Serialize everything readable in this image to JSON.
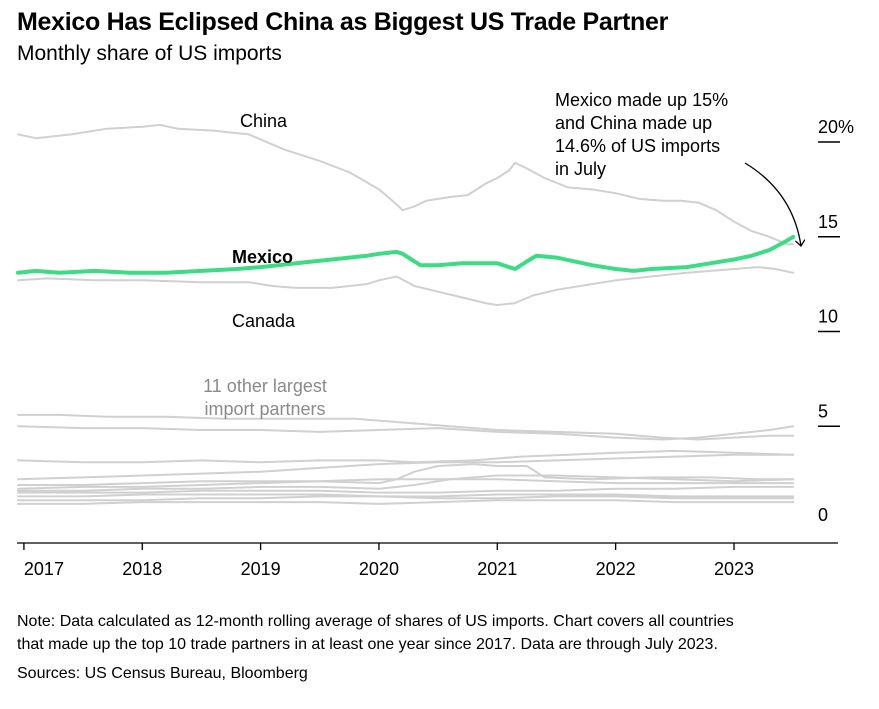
{
  "header": {
    "title": "Mexico Has Eclipsed China as Biggest US Trade Partner",
    "subtitle": "Monthly share of US imports"
  },
  "footer": {
    "note_line1": "Note: Data calculated as 12-month rolling average of shares of US imports. Chart covers all countries",
    "note_line2": "that made up the top 10 trade partners in at least one year since 2017. Data are through July 2023.",
    "sources": "Sources: US Census Bureau, Bloomberg"
  },
  "colors": {
    "mexico": "#3ddc84",
    "gray_line": "#d0d0d0",
    "axis": "#000000",
    "label_gray": "#8a8a8a"
  },
  "chart_data": {
    "type": "line",
    "xlim": [
      2016.95,
      2023.6
    ],
    "ylim": [
      0,
      20
    ],
    "y_ticks": [
      {
        "value": 0,
        "label": "0"
      },
      {
        "value": 5,
        "label": "5"
      },
      {
        "value": 10,
        "label": "10"
      },
      {
        "value": 15,
        "label": "15"
      },
      {
        "value": 20,
        "label": "20%"
      }
    ],
    "x_ticks": [
      {
        "value": 2017,
        "label": "2017"
      },
      {
        "value": 2018,
        "label": "2018"
      },
      {
        "value": 2019,
        "label": "2019"
      },
      {
        "value": 2020,
        "label": "2020"
      },
      {
        "value": 2021,
        "label": "2021"
      },
      {
        "value": 2022,
        "label": "2022"
      },
      {
        "value": 2023,
        "label": "2023"
      }
    ],
    "annotations": {
      "china": "China",
      "mexico": "Mexico",
      "canada": "Canada",
      "others_line1": "11 other largest",
      "others_line2": "import partners",
      "callout": [
        "Mexico made up 15%",
        "and China made up",
        "14.6% of US imports",
        "in July"
      ]
    },
    "series": [
      {
        "name": "China",
        "highlight": false,
        "points": [
          [
            2016.95,
            20.4
          ],
          [
            2017.1,
            20.2
          ],
          [
            2017.4,
            20.4
          ],
          [
            2017.7,
            20.7
          ],
          [
            2018.0,
            20.8
          ],
          [
            2018.15,
            20.9
          ],
          [
            2018.3,
            20.7
          ],
          [
            2018.6,
            20.6
          ],
          [
            2018.9,
            20.4
          ],
          [
            2019.2,
            19.6
          ],
          [
            2019.5,
            19.0
          ],
          [
            2019.75,
            18.4
          ],
          [
            2020.0,
            17.5
          ],
          [
            2020.15,
            16.7
          ],
          [
            2020.2,
            16.4
          ],
          [
            2020.3,
            16.6
          ],
          [
            2020.4,
            16.9
          ],
          [
            2020.6,
            17.1
          ],
          [
            2020.75,
            17.2
          ],
          [
            2020.9,
            17.8
          ],
          [
            2021.0,
            18.1
          ],
          [
            2021.1,
            18.5
          ],
          [
            2021.15,
            18.9
          ],
          [
            2021.25,
            18.6
          ],
          [
            2021.4,
            18.1
          ],
          [
            2021.6,
            17.6
          ],
          [
            2021.8,
            17.5
          ],
          [
            2022.0,
            17.3
          ],
          [
            2022.2,
            17.0
          ],
          [
            2022.4,
            16.9
          ],
          [
            2022.55,
            16.9
          ],
          [
            2022.7,
            16.8
          ],
          [
            2022.85,
            16.4
          ],
          [
            2023.0,
            15.8
          ],
          [
            2023.15,
            15.3
          ],
          [
            2023.3,
            15.0
          ],
          [
            2023.45,
            14.6
          ],
          [
            2023.5,
            14.6
          ]
        ]
      },
      {
        "name": "Mexico",
        "highlight": true,
        "points": [
          [
            2016.95,
            13.1
          ],
          [
            2017.1,
            13.2
          ],
          [
            2017.3,
            13.1
          ],
          [
            2017.6,
            13.2
          ],
          [
            2017.9,
            13.1
          ],
          [
            2018.2,
            13.1
          ],
          [
            2018.5,
            13.2
          ],
          [
            2018.8,
            13.3
          ],
          [
            2019.0,
            13.4
          ],
          [
            2019.3,
            13.6
          ],
          [
            2019.6,
            13.8
          ],
          [
            2019.9,
            14.0
          ],
          [
            2020.0,
            14.1
          ],
          [
            2020.15,
            14.2
          ],
          [
            2020.2,
            14.1
          ],
          [
            2020.35,
            13.5
          ],
          [
            2020.5,
            13.5
          ],
          [
            2020.7,
            13.6
          ],
          [
            2020.9,
            13.6
          ],
          [
            2021.0,
            13.6
          ],
          [
            2021.15,
            13.3
          ],
          [
            2021.25,
            13.7
          ],
          [
            2021.33,
            14.0
          ],
          [
            2021.5,
            13.9
          ],
          [
            2021.8,
            13.5
          ],
          [
            2022.0,
            13.3
          ],
          [
            2022.15,
            13.2
          ],
          [
            2022.3,
            13.3
          ],
          [
            2022.6,
            13.4
          ],
          [
            2022.8,
            13.6
          ],
          [
            2023.0,
            13.8
          ],
          [
            2023.15,
            14.0
          ],
          [
            2023.3,
            14.3
          ],
          [
            2023.45,
            14.8
          ],
          [
            2023.5,
            15.0
          ]
        ]
      },
      {
        "name": "Canada",
        "highlight": false,
        "points": [
          [
            2016.95,
            12.7
          ],
          [
            2017.2,
            12.8
          ],
          [
            2017.6,
            12.7
          ],
          [
            2018.0,
            12.7
          ],
          [
            2018.5,
            12.6
          ],
          [
            2018.9,
            12.6
          ],
          [
            2019.1,
            12.4
          ],
          [
            2019.3,
            12.3
          ],
          [
            2019.6,
            12.3
          ],
          [
            2019.9,
            12.5
          ],
          [
            2020.0,
            12.7
          ],
          [
            2020.15,
            12.9
          ],
          [
            2020.3,
            12.4
          ],
          [
            2020.5,
            12.1
          ],
          [
            2020.7,
            11.8
          ],
          [
            2020.9,
            11.5
          ],
          [
            2021.0,
            11.4
          ],
          [
            2021.15,
            11.5
          ],
          [
            2021.3,
            11.9
          ],
          [
            2021.5,
            12.2
          ],
          [
            2021.8,
            12.5
          ],
          [
            2022.0,
            12.7
          ],
          [
            2022.3,
            12.9
          ],
          [
            2022.6,
            13.1
          ],
          [
            2022.8,
            13.2
          ],
          [
            2023.0,
            13.3
          ],
          [
            2023.2,
            13.4
          ],
          [
            2023.35,
            13.3
          ],
          [
            2023.5,
            13.1
          ]
        ]
      },
      {
        "name": "",
        "highlight": false,
        "points": [
          [
            2016.95,
            5.6
          ],
          [
            2017.3,
            5.6
          ],
          [
            2017.7,
            5.5
          ],
          [
            2018.2,
            5.5
          ],
          [
            2018.7,
            5.4
          ],
          [
            2019.2,
            5.4
          ],
          [
            2019.8,
            5.4
          ],
          [
            2020.2,
            5.2
          ],
          [
            2020.6,
            5.0
          ],
          [
            2021.0,
            4.8
          ],
          [
            2021.5,
            4.7
          ],
          [
            2022.0,
            4.6
          ],
          [
            2022.4,
            4.4
          ],
          [
            2022.7,
            4.3
          ],
          [
            2023.0,
            4.4
          ],
          [
            2023.3,
            4.5
          ],
          [
            2023.5,
            4.5
          ]
        ]
      },
      {
        "name": "",
        "highlight": false,
        "points": [
          [
            2016.95,
            5.0
          ],
          [
            2017.5,
            4.9
          ],
          [
            2018.0,
            4.9
          ],
          [
            2018.5,
            4.8
          ],
          [
            2019.0,
            4.8
          ],
          [
            2019.5,
            4.7
          ],
          [
            2020.0,
            4.8
          ],
          [
            2020.5,
            4.9
          ],
          [
            2021.0,
            4.7
          ],
          [
            2021.5,
            4.6
          ],
          [
            2022.0,
            4.4
          ],
          [
            2022.4,
            4.3
          ],
          [
            2022.7,
            4.4
          ],
          [
            2023.0,
            4.6
          ],
          [
            2023.3,
            4.8
          ],
          [
            2023.5,
            5.0
          ]
        ]
      },
      {
        "name": "",
        "highlight": false,
        "points": [
          [
            2016.95,
            3.2
          ],
          [
            2017.5,
            3.1
          ],
          [
            2018.0,
            3.1
          ],
          [
            2018.5,
            3.2
          ],
          [
            2019.0,
            3.1
          ],
          [
            2019.5,
            3.2
          ],
          [
            2020.0,
            3.2
          ],
          [
            2020.3,
            3.1
          ],
          [
            2020.8,
            3.2
          ],
          [
            2021.2,
            3.4
          ],
          [
            2021.6,
            3.5
          ],
          [
            2022.0,
            3.6
          ],
          [
            2022.5,
            3.7
          ],
          [
            2023.0,
            3.6
          ],
          [
            2023.5,
            3.5
          ]
        ]
      },
      {
        "name": "",
        "highlight": false,
        "points": [
          [
            2016.95,
            2.2
          ],
          [
            2017.5,
            2.3
          ],
          [
            2018.0,
            2.4
          ],
          [
            2018.5,
            2.5
          ],
          [
            2019.0,
            2.6
          ],
          [
            2019.5,
            2.8
          ],
          [
            2020.0,
            3.0
          ],
          [
            2020.5,
            3.1
          ],
          [
            2021.0,
            3.1
          ],
          [
            2021.5,
            3.2
          ],
          [
            2022.0,
            3.3
          ],
          [
            2022.5,
            3.4
          ],
          [
            2023.0,
            3.5
          ],
          [
            2023.5,
            3.5
          ]
        ]
      },
      {
        "name": "",
        "highlight": false,
        "points": [
          [
            2016.95,
            1.9
          ],
          [
            2017.5,
            1.9
          ],
          [
            2018.0,
            2.0
          ],
          [
            2018.5,
            2.1
          ],
          [
            2019.0,
            2.1
          ],
          [
            2019.5,
            2.1
          ],
          [
            2020.0,
            2.0
          ],
          [
            2020.15,
            2.2
          ],
          [
            2020.3,
            2.6
          ],
          [
            2020.5,
            2.9
          ],
          [
            2020.8,
            3.0
          ],
          [
            2021.0,
            2.9
          ],
          [
            2021.25,
            2.9
          ],
          [
            2021.4,
            2.3
          ],
          [
            2021.8,
            2.2
          ],
          [
            2022.3,
            2.3
          ],
          [
            2022.8,
            2.3
          ],
          [
            2023.2,
            2.2
          ],
          [
            2023.5,
            2.2
          ]
        ]
      },
      {
        "name": "",
        "highlight": false,
        "points": [
          [
            2016.95,
            1.7
          ],
          [
            2017.5,
            1.8
          ],
          [
            2018.0,
            1.8
          ],
          [
            2018.5,
            1.9
          ],
          [
            2019.0,
            2.0
          ],
          [
            2019.5,
            2.1
          ],
          [
            2020.0,
            2.2
          ],
          [
            2020.5,
            2.2
          ],
          [
            2021.0,
            2.2
          ],
          [
            2021.5,
            2.1
          ],
          [
            2022.0,
            2.0
          ],
          [
            2022.5,
            2.0
          ],
          [
            2023.0,
            2.0
          ],
          [
            2023.5,
            2.0
          ]
        ]
      },
      {
        "name": "",
        "highlight": false,
        "points": [
          [
            2016.95,
            1.6
          ],
          [
            2017.5,
            1.6
          ],
          [
            2018.0,
            1.7
          ],
          [
            2018.5,
            1.7
          ],
          [
            2019.0,
            1.8
          ],
          [
            2019.5,
            1.8
          ],
          [
            2020.0,
            1.7
          ],
          [
            2020.3,
            1.9
          ],
          [
            2020.6,
            2.2
          ],
          [
            2021.0,
            2.4
          ],
          [
            2021.5,
            2.4
          ],
          [
            2022.0,
            2.3
          ],
          [
            2022.5,
            2.2
          ],
          [
            2023.0,
            2.1
          ],
          [
            2023.5,
            2.2
          ]
        ]
      },
      {
        "name": "",
        "highlight": false,
        "points": [
          [
            2016.95,
            1.5
          ],
          [
            2017.5,
            1.5
          ],
          [
            2018.0,
            1.5
          ],
          [
            2018.5,
            1.6
          ],
          [
            2019.0,
            1.6
          ],
          [
            2019.5,
            1.6
          ],
          [
            2020.0,
            1.5
          ],
          [
            2020.5,
            1.5
          ],
          [
            2021.0,
            1.6
          ],
          [
            2021.5,
            1.6
          ],
          [
            2022.0,
            1.7
          ],
          [
            2022.5,
            1.7
          ],
          [
            2023.0,
            1.8
          ],
          [
            2023.5,
            1.8
          ]
        ]
      },
      {
        "name": "",
        "highlight": false,
        "points": [
          [
            2016.95,
            1.3
          ],
          [
            2017.5,
            1.3
          ],
          [
            2018.0,
            1.4
          ],
          [
            2018.5,
            1.4
          ],
          [
            2019.0,
            1.4
          ],
          [
            2019.5,
            1.4
          ],
          [
            2020.0,
            1.3
          ],
          [
            2020.5,
            1.3
          ],
          [
            2021.0,
            1.4
          ],
          [
            2021.5,
            1.4
          ],
          [
            2022.0,
            1.4
          ],
          [
            2022.5,
            1.3
          ],
          [
            2023.0,
            1.3
          ],
          [
            2023.5,
            1.3
          ]
        ]
      },
      {
        "name": "",
        "highlight": false,
        "points": [
          [
            2016.95,
            1.1
          ],
          [
            2017.5,
            1.1
          ],
          [
            2018.0,
            1.1
          ],
          [
            2018.5,
            1.2
          ],
          [
            2019.0,
            1.2
          ],
          [
            2019.5,
            1.3
          ],
          [
            2020.0,
            1.3
          ],
          [
            2020.5,
            1.2
          ],
          [
            2021.0,
            1.2
          ],
          [
            2021.5,
            1.3
          ],
          [
            2022.0,
            1.3
          ],
          [
            2022.5,
            1.2
          ],
          [
            2023.0,
            1.2
          ],
          [
            2023.5,
            1.2
          ]
        ]
      },
      {
        "name": "",
        "highlight": false,
        "points": [
          [
            2016.95,
            0.9
          ],
          [
            2017.5,
            0.9
          ],
          [
            2018.0,
            1.0
          ],
          [
            2018.5,
            1.0
          ],
          [
            2019.0,
            1.0
          ],
          [
            2019.5,
            1.0
          ],
          [
            2020.0,
            0.9
          ],
          [
            2020.5,
            1.0
          ],
          [
            2021.0,
            1.1
          ],
          [
            2021.5,
            1.1
          ],
          [
            2022.0,
            1.1
          ],
          [
            2022.5,
            1.0
          ],
          [
            2023.0,
            1.0
          ],
          [
            2023.5,
            1.0
          ]
        ]
      }
    ]
  }
}
